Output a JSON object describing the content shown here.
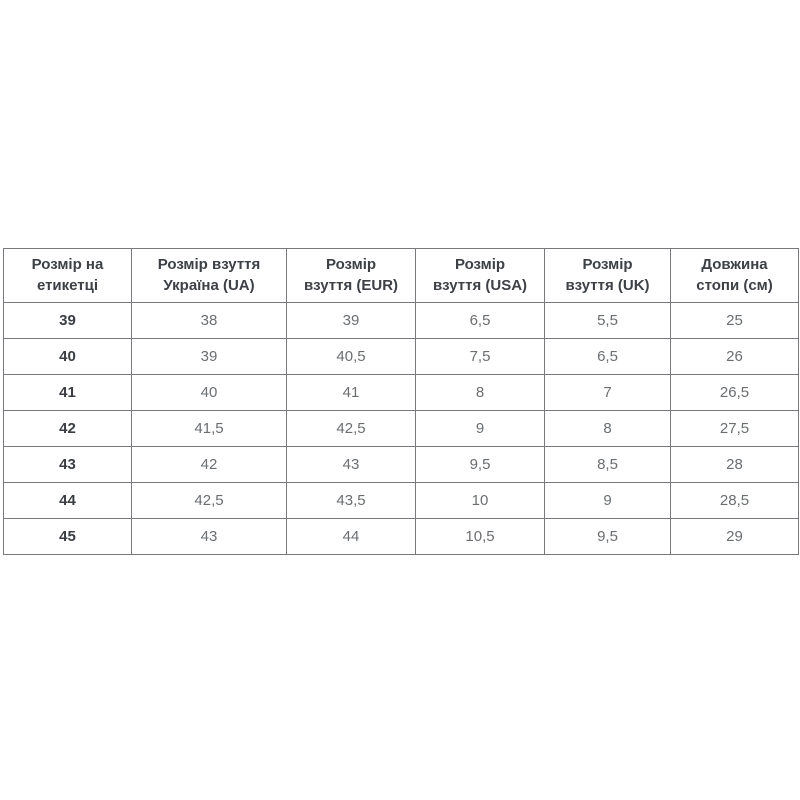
{
  "table": {
    "headers": [
      {
        "line1": "Розмір на",
        "line2": "етикетці"
      },
      {
        "line1": "Розмір взуття",
        "line2": "Україна (UA)"
      },
      {
        "line1": "Розмір",
        "line2": "взуття (EUR)"
      },
      {
        "line1": "Розмір",
        "line2": "взуття (USA)"
      },
      {
        "line1": "Розмір",
        "line2": "взуття (UK)"
      },
      {
        "line1": "Довжина",
        "line2": "стопи (см)"
      }
    ],
    "colors": {
      "border": "#77797c",
      "header_text": "#3d4045",
      "cell_text": "#6b6e71",
      "row_label_text": "#3a3d41",
      "background": "#ffffff"
    }
  },
  "chart_data": {
    "type": "table",
    "columns": [
      "Розмір на етикетці",
      "Розмір взуття Україна (UA)",
      "Розмір взуття (EUR)",
      "Розмір взуття (USA)",
      "Розмір взуття (UK)",
      "Довжина стопи (см)"
    ],
    "rows": [
      [
        "39",
        "38",
        "39",
        "6,5",
        "5,5",
        "25"
      ],
      [
        "40",
        "39",
        "40,5",
        "7,5",
        "6,5",
        "26"
      ],
      [
        "41",
        "40",
        "41",
        "8",
        "7",
        "26,5"
      ],
      [
        "42",
        "41,5",
        "42,5",
        "9",
        "8",
        "27,5"
      ],
      [
        "43",
        "42",
        "43",
        "9,5",
        "8,5",
        "28"
      ],
      [
        "44",
        "42,5",
        "43,5",
        "10",
        "9",
        "28,5"
      ],
      [
        "45",
        "43",
        "44",
        "10,5",
        "9,5",
        "29"
      ]
    ]
  }
}
